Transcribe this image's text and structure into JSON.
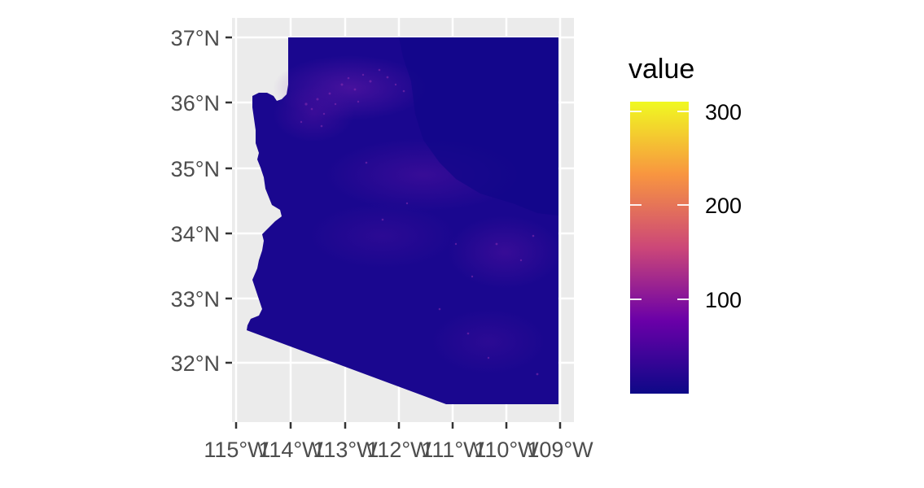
{
  "map": {
    "region": "Arizona",
    "panel_background": "#ebebeb",
    "gridline_color": "#ffffff",
    "latitude_ticks": [
      "37°N",
      "36°N",
      "35°N",
      "34°N",
      "33°N",
      "32°N"
    ],
    "longitude_ticks": [
      "115°W",
      "114°W",
      "113°W",
      "112°W",
      "111°W",
      "110°W",
      "109°W"
    ],
    "base_fill": "#1a078f"
  },
  "legend": {
    "title": "value",
    "breaks": [
      "300",
      "200",
      "100"
    ],
    "range": [
      0,
      310
    ],
    "colors": {
      "low": "#0d0887",
      "mid_low": "#6a00a8",
      "mid": "#cc4778",
      "mid_high": "#f89540",
      "high": "#f0f921"
    }
  }
}
